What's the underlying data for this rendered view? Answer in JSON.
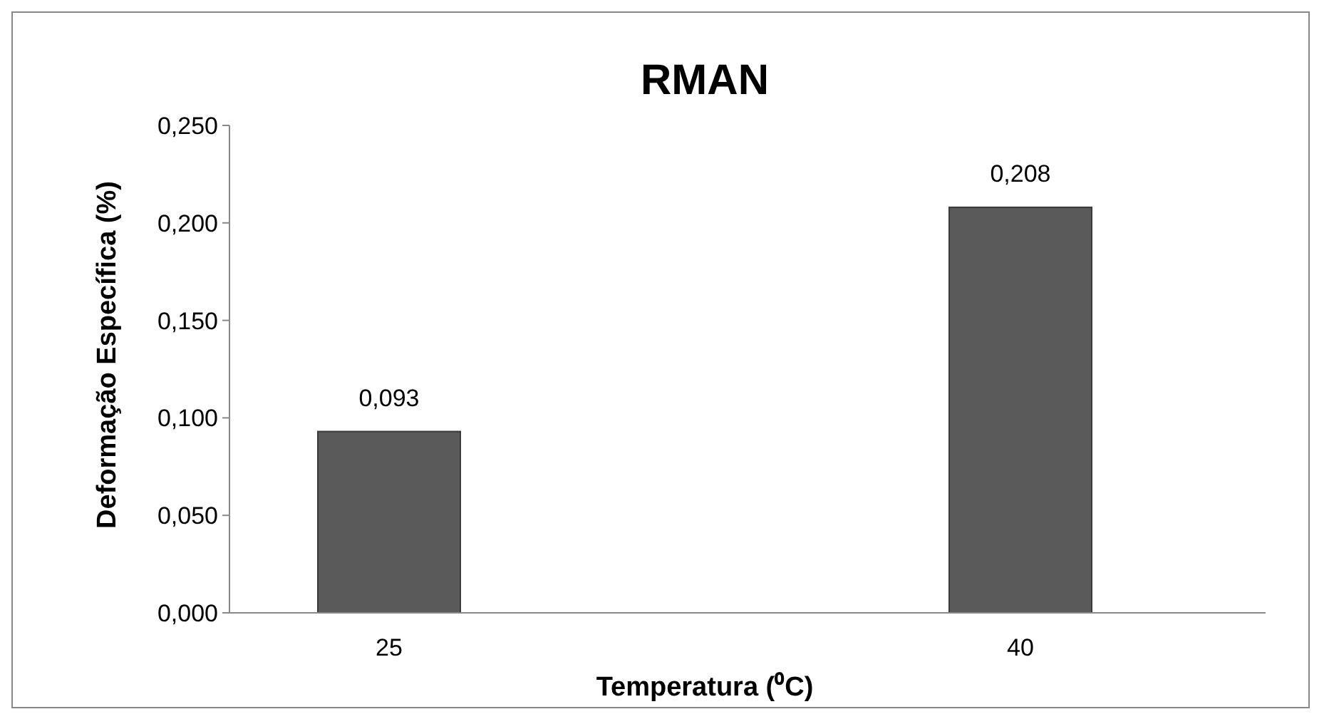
{
  "chart_data": {
    "type": "bar",
    "title": "RMAN",
    "xlabel": "Temperatura (⁰C)",
    "ylabel": "Deformação Específica (%)",
    "categories": [
      "25",
      "40"
    ],
    "values": [
      0.093,
      0.208
    ],
    "value_labels": [
      "0,093",
      "0,208"
    ],
    "color": "#5a5a5a",
    "ylim": [
      0,
      0.25
    ],
    "yticks": [
      {
        "value": 0,
        "label": "0,000"
      },
      {
        "value": 0.05,
        "label": "0,050"
      },
      {
        "value": 0.1,
        "label": "0,100"
      },
      {
        "value": 0.15,
        "label": "0,150"
      },
      {
        "value": 0.2,
        "label": "0,200"
      },
      {
        "value": 0.25,
        "label": "0,250"
      }
    ],
    "grid": false
  }
}
